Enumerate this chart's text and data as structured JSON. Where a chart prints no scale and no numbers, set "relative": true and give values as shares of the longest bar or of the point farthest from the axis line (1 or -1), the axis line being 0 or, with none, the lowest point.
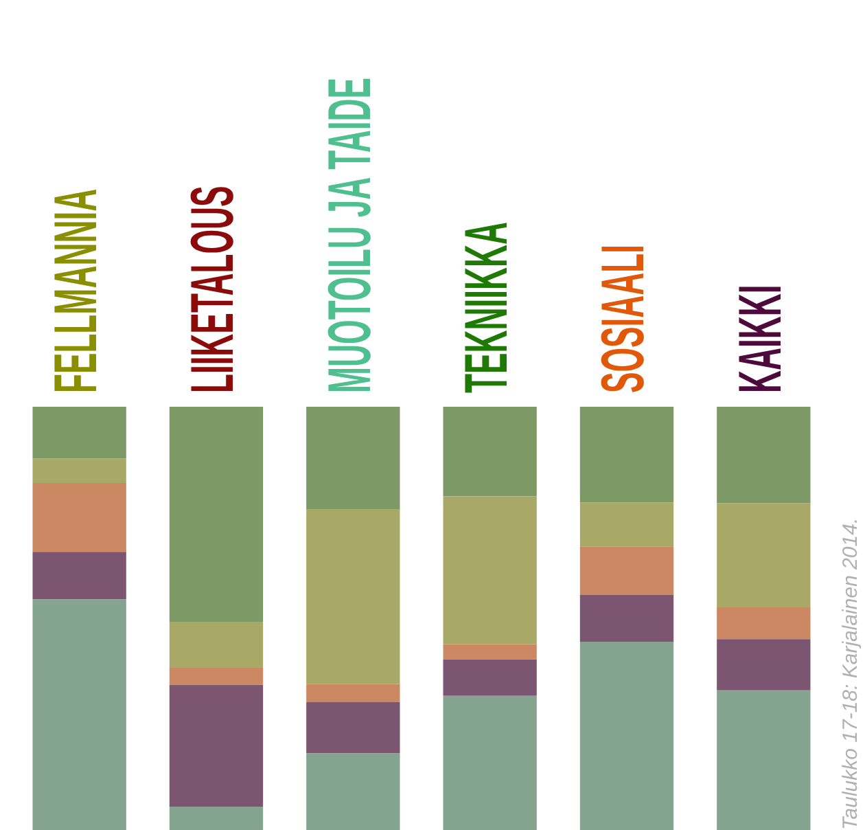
{
  "chart_data": {
    "type": "bar",
    "stacked": true,
    "relative": true,
    "legend": false,
    "categories": [
      "FELLMANNIA",
      "LIIKETALOUS",
      "MUOTOILU JA TAIDE",
      "TEKNIIKKA",
      "SOSIAALI",
      "KAIKKI"
    ],
    "series": [
      {
        "color": "#84a48f",
        "values": [
          0.545,
          0.055,
          0.181,
          0.317,
          0.445,
          0.33
        ]
      },
      {
        "color": "#7c5670",
        "values": [
          0.112,
          0.288,
          0.121,
          0.086,
          0.111,
          0.121
        ]
      },
      {
        "color": "#cb8862",
        "values": [
          0.163,
          0.04,
          0.043,
          0.036,
          0.114,
          0.075
        ]
      },
      {
        "color": "#a9a967",
        "values": [
          0.058,
          0.109,
          0.412,
          0.349,
          0.104,
          0.246
        ]
      },
      {
        "color": "#7c9966",
        "values": [
          0.122,
          0.508,
          0.243,
          0.212,
          0.226,
          0.228
        ]
      }
    ],
    "annotations": [
      "Taulukko 17-18: Karjalainen 2014."
    ]
  }
}
